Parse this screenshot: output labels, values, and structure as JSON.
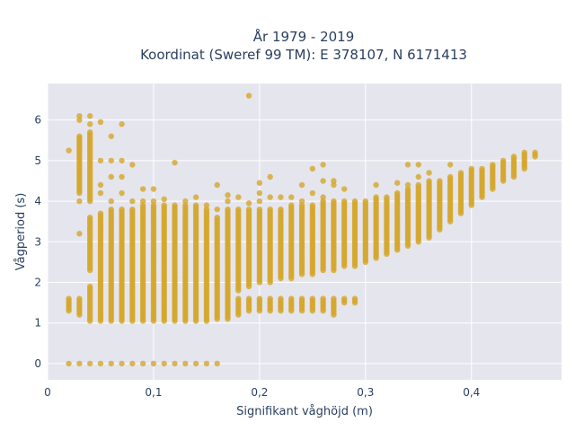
{
  "chart_data": {
    "type": "scatter",
    "title_line1": "År 1979 - 2019",
    "title_line2": "Koordinat (Sweref 99 TM): E 378107, N 6171413",
    "xlabel": "Signifikant våghöjd (m)",
    "ylabel": "Vågperiod (s)",
    "xlim": [
      0,
      0.485
    ],
    "ylim": [
      -0.4,
      6.9
    ],
    "x_ticks": [
      0,
      0.1,
      0.2,
      0.3,
      0.4
    ],
    "x_tick_labels": [
      "0",
      "0,1",
      "0,2",
      "0,3",
      "0,4"
    ],
    "y_ticks": [
      0,
      1,
      2,
      3,
      4,
      5,
      6
    ],
    "y_tick_labels": [
      "0",
      "1",
      "2",
      "3",
      "4",
      "5",
      "6"
    ],
    "grid": true,
    "marker_color": "#d4a62a",
    "plot_bg": "#e5e5ee",
    "columns": [
      {
        "x": 0.02,
        "ranges": [
          [
            1.3,
            1.6
          ]
        ],
        "points": [
          0,
          5.25
        ]
      },
      {
        "x": 0.03,
        "ranges": [
          [
            1.2,
            1.6
          ],
          [
            4.2,
            5.6
          ]
        ],
        "points": [
          0,
          3.2,
          4.0,
          6.0,
          6.1
        ]
      },
      {
        "x": 0.04,
        "ranges": [
          [
            1.05,
            1.9
          ],
          [
            2.3,
            3.6
          ],
          [
            4.0,
            5.7
          ]
        ],
        "points": [
          0,
          6.1,
          5.9
        ]
      },
      {
        "x": 0.05,
        "ranges": [
          [
            1.05,
            3.7
          ]
        ],
        "points": [
          0,
          4.2,
          4.4,
          5.0,
          5.95
        ]
      },
      {
        "x": 0.06,
        "ranges": [
          [
            1.05,
            3.8
          ]
        ],
        "points": [
          0,
          4.0,
          4.6,
          5.0,
          5.6
        ]
      },
      {
        "x": 0.07,
        "ranges": [
          [
            1.05,
            3.8
          ]
        ],
        "points": [
          0,
          4.2,
          4.6,
          5.0,
          5.9
        ]
      },
      {
        "x": 0.08,
        "ranges": [
          [
            1.05,
            3.8
          ]
        ],
        "points": [
          0,
          4.0,
          4.9
        ]
      },
      {
        "x": 0.09,
        "ranges": [
          [
            1.05,
            3.9
          ]
        ],
        "points": [
          0,
          4.0,
          4.3
        ]
      },
      {
        "x": 0.1,
        "ranges": [
          [
            1.05,
            3.9
          ]
        ],
        "points": [
          0,
          4.0,
          4.3
        ]
      },
      {
        "x": 0.11,
        "ranges": [
          [
            1.05,
            3.9
          ]
        ],
        "points": [
          0,
          4.05
        ]
      },
      {
        "x": 0.12,
        "ranges": [
          [
            1.05,
            3.9
          ]
        ],
        "points": [
          0,
          4.95
        ]
      },
      {
        "x": 0.13,
        "ranges": [
          [
            1.05,
            3.9
          ]
        ],
        "points": [
          0,
          4.0
        ]
      },
      {
        "x": 0.14,
        "ranges": [
          [
            1.05,
            3.9
          ]
        ],
        "points": [
          0,
          4.1
        ]
      },
      {
        "x": 0.15,
        "ranges": [
          [
            1.05,
            3.8
          ]
        ],
        "points": [
          0,
          3.9
        ]
      },
      {
        "x": 0.16,
        "ranges": [
          [
            1.1,
            3.6
          ]
        ],
        "points": [
          0,
          3.8,
          4.4
        ]
      },
      {
        "x": 0.17,
        "ranges": [
          [
            1.1,
            3.8
          ]
        ],
        "points": [
          4.0,
          4.15
        ]
      },
      {
        "x": 0.18,
        "ranges": [
          [
            1.2,
            1.6
          ],
          [
            1.8,
            3.8
          ]
        ],
        "points": [
          4.1
        ]
      },
      {
        "x": 0.19,
        "ranges": [
          [
            1.3,
            1.6
          ],
          [
            1.9,
            3.8
          ]
        ],
        "points": [
          3.95,
          6.6
        ]
      },
      {
        "x": 0.2,
        "ranges": [
          [
            1.3,
            1.6
          ],
          [
            2.0,
            3.8
          ]
        ],
        "points": [
          4.0,
          4.2,
          4.45
        ]
      },
      {
        "x": 0.21,
        "ranges": [
          [
            1.3,
            1.6
          ],
          [
            2.0,
            3.8
          ]
        ],
        "points": [
          4.6,
          4.1
        ]
      },
      {
        "x": 0.22,
        "ranges": [
          [
            1.3,
            1.6
          ],
          [
            2.1,
            3.8
          ]
        ],
        "points": [
          4.1
        ]
      },
      {
        "x": 0.23,
        "ranges": [
          [
            1.3,
            1.6
          ],
          [
            2.1,
            3.9
          ]
        ],
        "points": [
          4.1
        ]
      },
      {
        "x": 0.24,
        "ranges": [
          [
            1.3,
            1.6
          ],
          [
            2.2,
            3.9
          ]
        ],
        "points": [
          4.0,
          4.4
        ]
      },
      {
        "x": 0.25,
        "ranges": [
          [
            1.3,
            1.6
          ],
          [
            2.2,
            3.9
          ]
        ],
        "points": [
          4.2,
          4.8
        ]
      },
      {
        "x": 0.26,
        "ranges": [
          [
            1.3,
            1.6
          ],
          [
            2.3,
            4.0
          ]
        ],
        "points": [
          4.9,
          4.5,
          4.1
        ]
      },
      {
        "x": 0.27,
        "ranges": [
          [
            1.2,
            1.6
          ],
          [
            2.3,
            4.0
          ]
        ],
        "points": [
          4.5,
          4.4
        ]
      },
      {
        "x": 0.28,
        "ranges": [
          [
            1.5,
            1.6
          ],
          [
            2.4,
            4.0
          ]
        ],
        "points": [
          4.3
        ]
      },
      {
        "x": 0.29,
        "ranges": [
          [
            1.5,
            1.6
          ],
          [
            2.4,
            4.0
          ]
        ],
        "points": []
      },
      {
        "x": 0.3,
        "ranges": [
          [
            2.5,
            4.0
          ]
        ],
        "points": []
      },
      {
        "x": 0.31,
        "ranges": [
          [
            2.6,
            4.1
          ]
        ],
        "points": [
          4.4
        ]
      },
      {
        "x": 0.32,
        "ranges": [
          [
            2.7,
            4.1
          ]
        ],
        "points": []
      },
      {
        "x": 0.33,
        "ranges": [
          [
            2.8,
            4.2
          ]
        ],
        "points": [
          4.45
        ]
      },
      {
        "x": 0.34,
        "ranges": [
          [
            2.9,
            4.3
          ]
        ],
        "points": [
          4.4,
          4.9
        ]
      },
      {
        "x": 0.35,
        "ranges": [
          [
            3.0,
            4.4
          ]
        ],
        "points": [
          4.6,
          4.9
        ]
      },
      {
        "x": 0.36,
        "ranges": [
          [
            3.1,
            4.5
          ]
        ],
        "points": [
          4.7
        ]
      },
      {
        "x": 0.37,
        "ranges": [
          [
            3.3,
            4.5
          ]
        ],
        "points": []
      },
      {
        "x": 0.38,
        "ranges": [
          [
            3.5,
            4.6
          ]
        ],
        "points": [
          4.9
        ]
      },
      {
        "x": 0.39,
        "ranges": [
          [
            3.7,
            4.7
          ]
        ],
        "points": []
      },
      {
        "x": 0.4,
        "ranges": [
          [
            3.9,
            4.8
          ]
        ],
        "points": []
      },
      {
        "x": 0.41,
        "ranges": [
          [
            4.1,
            4.8
          ]
        ],
        "points": []
      },
      {
        "x": 0.42,
        "ranges": [
          [
            4.3,
            4.9
          ]
        ],
        "points": []
      },
      {
        "x": 0.43,
        "ranges": [
          [
            4.5,
            5.0
          ]
        ],
        "points": []
      },
      {
        "x": 0.44,
        "ranges": [
          [
            4.6,
            5.1
          ]
        ],
        "points": []
      },
      {
        "x": 0.45,
        "ranges": [
          [
            4.8,
            5.2
          ]
        ],
        "points": []
      },
      {
        "x": 0.46,
        "ranges": [
          [
            5.1,
            5.2
          ]
        ],
        "points": []
      }
    ]
  }
}
